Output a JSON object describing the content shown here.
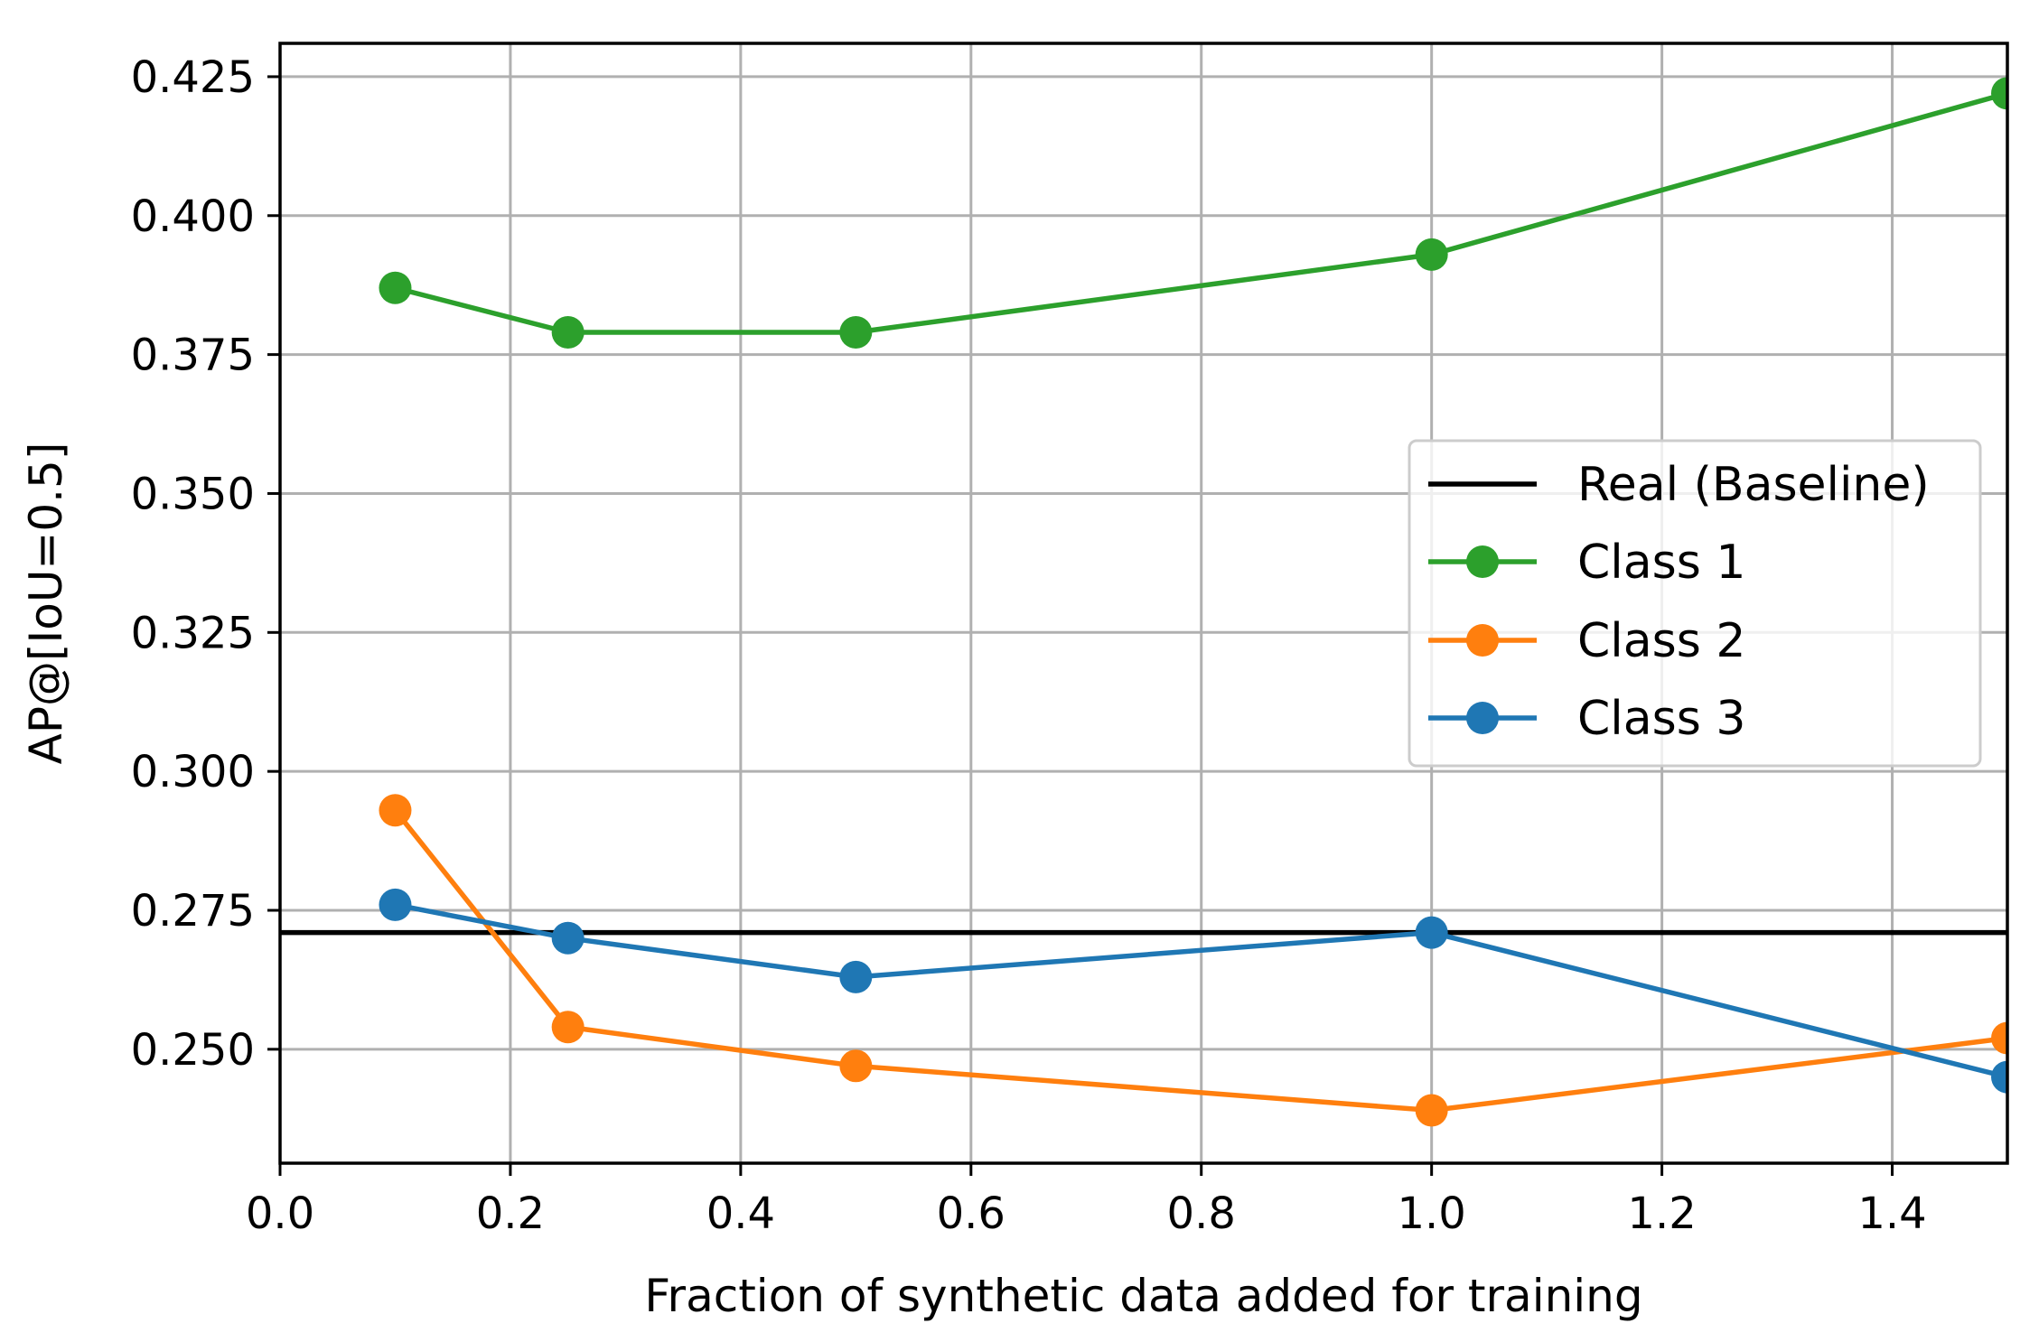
{
  "chart_data": {
    "type": "line",
    "title": "",
    "xlabel": "Fraction of synthetic data added for training",
    "ylabel": "AP@[IoU=0.5]",
    "xlim": [
      0.0,
      1.5
    ],
    "ylim": [
      0.2295,
      0.431
    ],
    "xticks": [
      0.0,
      0.2,
      0.4,
      0.6,
      0.8,
      1.0,
      1.2,
      1.4
    ],
    "xtick_labels": [
      "0.0",
      "0.2",
      "0.4",
      "0.6",
      "0.8",
      "1.0",
      "1.2",
      "1.4"
    ],
    "yticks": [
      0.25,
      0.275,
      0.3,
      0.325,
      0.35,
      0.375,
      0.4,
      0.425
    ],
    "ytick_labels": [
      "0.250",
      "0.275",
      "0.300",
      "0.325",
      "0.350",
      "0.375",
      "0.400",
      "0.425"
    ],
    "grid": true,
    "legend_position": "center-right",
    "baseline": {
      "name": "Real (Baseline)",
      "value": 0.271,
      "color": "#000000"
    },
    "x": [
      0.1,
      0.25,
      0.5,
      1.0,
      1.5
    ],
    "series": [
      {
        "name": "Class 1",
        "color": "#2ca02c",
        "values": [
          0.387,
          0.379,
          0.379,
          0.393,
          0.422
        ]
      },
      {
        "name": "Class 2",
        "color": "#ff7f0e",
        "values": [
          0.293,
          0.254,
          0.247,
          0.239,
          0.252
        ]
      },
      {
        "name": "Class 3",
        "color": "#1f77b4",
        "values": [
          0.276,
          0.27,
          0.263,
          0.271,
          0.245
        ]
      }
    ]
  }
}
